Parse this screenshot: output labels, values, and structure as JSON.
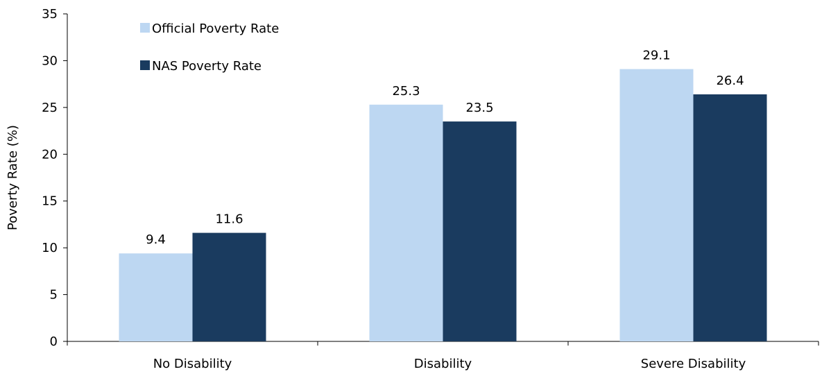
{
  "chart_data": {
    "type": "bar",
    "ylabel": "Poverty Rate (%)",
    "xlabel": "",
    "ylim": [
      0,
      35
    ],
    "yticks": [
      0,
      5,
      10,
      15,
      20,
      25,
      30,
      35
    ],
    "grid": false,
    "legend_position": "top-left",
    "categories": [
      "No Disability",
      "Disability",
      "Severe Disability"
    ],
    "series": [
      {
        "name": "Official Poverty Rate",
        "color": "#bdd7f2",
        "values": [
          9.4,
          25.3,
          29.1
        ]
      },
      {
        "name": "NAS Poverty Rate",
        "color": "#1a3b5f",
        "values": [
          11.6,
          23.5,
          26.4
        ]
      }
    ]
  }
}
